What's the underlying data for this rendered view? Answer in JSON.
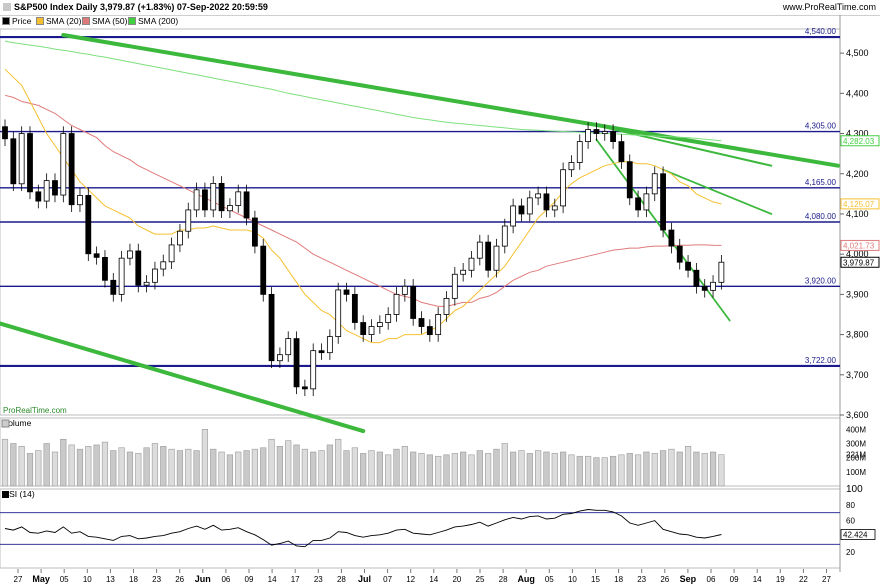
{
  "header": {
    "title": "S&P500 Index Daily 3,979.87 (+1.83%) 07-Sep-2022 20:59:59",
    "brand": "www.ProRealTime.com"
  },
  "legend": [
    {
      "label": "Price",
      "color": "#000000"
    },
    {
      "label": "SMA (20)",
      "color": "#f5c030"
    },
    {
      "label": "SMA (50)",
      "color": "#e07a7a"
    },
    {
      "label": "SMA (200)",
      "color": "#40d040"
    }
  ],
  "watermark": "ProRealTime.com",
  "volume_label": "Volume",
  "rsi_label": "RSI (14)",
  "colors": {
    "up": "#ffffff",
    "down": "#000000",
    "hline": "#1a1a8c",
    "trend": "#3cb83c"
  },
  "chart_data": {
    "type": "candlestick",
    "title": "S&P500 Index Daily",
    "last_close": 3979.87,
    "change": "+1.83%",
    "timestamp": "07-Sep-2022 20:59:59",
    "ylim": [
      3600,
      4560
    ],
    "y_ticks": [
      3600,
      3700,
      3800,
      3900,
      4000,
      4100,
      4200,
      4300,
      4400,
      4500
    ],
    "y_tick_labels": [
      "3,600",
      "3,700",
      "3,800",
      "3,900",
      "4,000",
      "4,100",
      "4,200",
      "4,300",
      "4,400",
      "4,500"
    ],
    "x_tick_labels": [
      "27",
      "May",
      "05",
      "10",
      "13",
      "18",
      "23",
      "26",
      "Jun",
      "06",
      "09",
      "14",
      "17",
      "23",
      "28",
      "Jul",
      "07",
      "12",
      "14",
      "20",
      "25",
      "28",
      "Aug",
      "05",
      "10",
      "15",
      "18",
      "23",
      "26",
      "Sep",
      "06",
      "09",
      "14",
      "19",
      "22",
      "27"
    ],
    "horizontal_levels": [
      {
        "value": 4540,
        "label": "4,540.00"
      },
      {
        "value": 4305,
        "label": "4,305.00"
      },
      {
        "value": 4165,
        "label": "4,165.00"
      },
      {
        "value": 4080,
        "label": "4,080.00"
      },
      {
        "value": 3920,
        "label": "3,920.00"
      },
      {
        "value": 3722,
        "label": "3,722.00"
      }
    ],
    "value_tags": [
      {
        "value": 4282.03,
        "label": "4,282.03",
        "color": "#40d040"
      },
      {
        "value": 4125.07,
        "label": "4,125.07",
        "color": "#f5c030"
      },
      {
        "value": 4021.73,
        "label": "4,021.73",
        "color": "#e07a7a"
      },
      {
        "value": 3979.87,
        "label": "3,979.87",
        "color": "#000000"
      }
    ],
    "closes": [
      4287,
      4175,
      4300,
      4155,
      4132,
      4183,
      4147,
      4300,
      4123,
      4146,
      4001,
      3992,
      3935,
      3900,
      3990,
      4008,
      3923,
      3930,
      3963,
      3981,
      4023,
      4057,
      4110,
      4160,
      4110,
      4176,
      4108,
      4121,
      4155,
      4090,
      4020,
      3900,
      3735,
      3750,
      3790,
      3670,
      3665,
      3760,
      3755,
      3795,
      3911,
      3900,
      3830,
      3800,
      3820,
      3830,
      3850,
      3900,
      3920,
      3840,
      3820,
      3800,
      3850,
      3890,
      3950,
      3960,
      3990,
      4030,
      3960,
      4020,
      4070,
      4120,
      4100,
      4140,
      4150,
      4110,
      4120,
      4210,
      4228,
      4280,
      4310,
      4300,
      4305,
      4280,
      4230,
      4140,
      4110,
      4150,
      4200,
      4060,
      4020,
      3980,
      3960,
      3920,
      3910,
      3930,
      3980
    ],
    "sma20": [
      4460,
      4440,
      4420,
      4380,
      4340,
      4300,
      4270,
      4240,
      4210,
      4180,
      4160,
      4140,
      4120,
      4110,
      4100,
      4090,
      4070,
      4060,
      4050,
      4050,
      4050,
      4060,
      4060,
      4065,
      4065,
      4070,
      4065,
      4060,
      4060,
      4060,
      4055,
      4040,
      4010,
      3990,
      3960,
      3930,
      3900,
      3880,
      3860,
      3850,
      3830,
      3810,
      3800,
      3790,
      3780,
      3780,
      3790,
      3790,
      3800,
      3800,
      3800,
      3810,
      3820,
      3840,
      3860,
      3870,
      3890,
      3910,
      3930,
      3950,
      3970,
      4000,
      4030,
      4060,
      4090,
      4110,
      4130,
      4155,
      4175,
      4190,
      4200,
      4210,
      4220,
      4225,
      4230,
      4230,
      4225,
      4225,
      4220,
      4210,
      4200,
      4180,
      4170,
      4150,
      4140,
      4130,
      4125
    ],
    "sma50": [
      4395,
      4390,
      4380,
      4375,
      4370,
      4360,
      4350,
      4335,
      4320,
      4310,
      4300,
      4290,
      4270,
      4255,
      4245,
      4235,
      4220,
      4210,
      4200,
      4190,
      4180,
      4170,
      4160,
      4150,
      4140,
      4130,
      4120,
      4110,
      4100,
      4090,
      4080,
      4070,
      4060,
      4050,
      4040,
      4030,
      4015,
      4000,
      3990,
      3980,
      3970,
      3960,
      3950,
      3940,
      3930,
      3920,
      3910,
      3900,
      3895,
      3890,
      3880,
      3875,
      3870,
      3870,
      3875,
      3880,
      3880,
      3890,
      3895,
      3905,
      3920,
      3935,
      3945,
      3955,
      3960,
      3970,
      3975,
      3980,
      3985,
      3990,
      3995,
      4000,
      4005,
      4010,
      4012,
      4015,
      4015,
      4018,
      4020,
      4020,
      4021,
      4022,
      4022,
      4023,
      4023,
      4022,
      4021.73
    ],
    "sma200": [
      4530,
      4526,
      4523,
      4520,
      4517,
      4514,
      4510,
      4507,
      4504,
      4500,
      4497,
      4493,
      4490,
      4486,
      4482,
      4478,
      4474,
      4470,
      4466,
      4462,
      4458,
      4454,
      4450,
      4446,
      4442,
      4438,
      4434,
      4430,
      4426,
      4422,
      4418,
      4414,
      4410,
      4405,
      4400,
      4396,
      4392,
      4388,
      4384,
      4380,
      4376,
      4372,
      4368,
      4364,
      4360,
      4356,
      4352,
      4348,
      4344,
      4340,
      4337,
      4334,
      4331,
      4328,
      4326,
      4324,
      4322,
      4320,
      4318,
      4316,
      4314,
      4312,
      4310,
      4309,
      4308,
      4307,
      4306,
      4305,
      4304,
      4303,
      4302,
      4301,
      4300,
      4299,
      4298,
      4297,
      4296,
      4295,
      4294,
      4293,
      4292,
      4291,
      4290,
      4288,
      4286,
      4284,
      4282.03
    ],
    "volume": {
      "ylim": [
        0,
        480
      ],
      "ticks": [
        100,
        200,
        300,
        400
      ],
      "tick_labels": [
        "100M",
        "200M",
        "300M",
        "400M"
      ],
      "last_label": "221M",
      "last_value": 221,
      "values": [
        330,
        300,
        280,
        230,
        250,
        300,
        240,
        330,
        290,
        260,
        280,
        290,
        310,
        250,
        270,
        240,
        230,
        270,
        300,
        280,
        260,
        250,
        260,
        250,
        400,
        260,
        240,
        220,
        240,
        250,
        260,
        270,
        330,
        280,
        320,
        290,
        260,
        240,
        250,
        290,
        330,
        250,
        270,
        230,
        250,
        240,
        220,
        260,
        280,
        240,
        230,
        220,
        210,
        220,
        230,
        240,
        220,
        250,
        230,
        260,
        300,
        240,
        250,
        230,
        250,
        240,
        230,
        240,
        220,
        210,
        210,
        200,
        200,
        210,
        220,
        230,
        220,
        240,
        230,
        250,
        260,
        240,
        280,
        240,
        230,
        240,
        221
      ]
    },
    "rsi": {
      "ylim": [
        0,
        100
      ],
      "ticks": [
        20,
        40,
        60,
        80,
        100
      ],
      "tick_labels": [
        "20",
        "40",
        "60",
        "80",
        "100"
      ],
      "bands": [
        30,
        70
      ],
      "last_label": "42.424",
      "values": [
        50,
        48,
        52,
        45,
        44,
        47,
        45,
        52,
        44,
        46,
        40,
        39,
        37,
        35,
        40,
        41,
        37,
        38,
        40,
        41,
        44,
        46,
        50,
        53,
        49,
        54,
        48,
        49,
        51,
        46,
        42,
        36,
        29,
        31,
        34,
        28,
        27,
        35,
        35,
        38,
        46,
        45,
        41,
        39,
        41,
        42,
        44,
        48,
        49,
        44,
        43,
        42,
        45,
        48,
        52,
        53,
        55,
        58,
        53,
        57,
        61,
        64,
        62,
        65,
        66,
        62,
        63,
        68,
        69,
        72,
        74,
        73,
        73,
        71,
        66,
        57,
        54,
        57,
        60,
        49,
        46,
        43,
        42,
        39,
        38,
        40,
        42.424
      ]
    }
  }
}
